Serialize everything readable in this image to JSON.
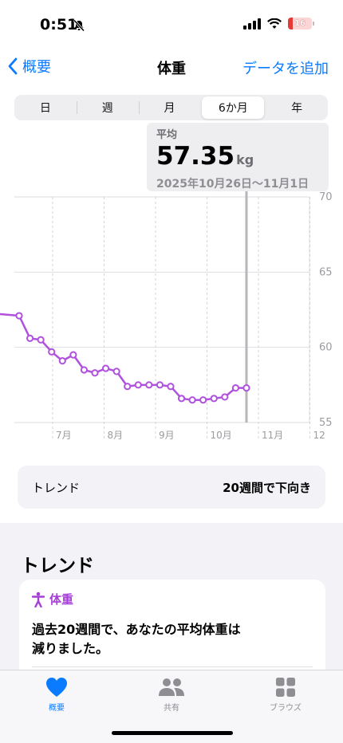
{
  "status": {
    "time": "0:51",
    "battery": "16"
  },
  "nav": {
    "back_label": "概要",
    "title": "体重",
    "action_label": "データを追加"
  },
  "segments": [
    {
      "label": "日"
    },
    {
      "label": "週"
    },
    {
      "label": "月"
    },
    {
      "label": "6か月",
      "selected": true
    },
    {
      "label": "年"
    }
  ],
  "summary": {
    "label": "平均",
    "value": "57.35",
    "unit": "kg",
    "range": "2025年10月26日～11月1日"
  },
  "chart_data": {
    "type": "line",
    "x_tick_labels": [
      "7月",
      "8月",
      "9月",
      "10月",
      "11月",
      "12"
    ],
    "y_tick_labels": [
      "70",
      "65",
      "60",
      "55"
    ],
    "ylim": [
      55,
      70
    ],
    "grid": true,
    "series": [
      {
        "values": [
          62.1,
          60.6,
          60.5,
          59.7,
          59.1,
          59.5,
          58.5,
          58.3,
          58.6,
          58.4,
          57.4,
          57.5,
          57.5,
          57.5,
          57.4,
          56.6,
          56.5,
          56.5,
          56.6,
          56.7,
          57.3,
          57.3
        ]
      }
    ],
    "highlight_index": 21,
    "line_color": "#af52de"
  },
  "trend": {
    "label": "トレンド",
    "value": "20週間で下向き"
  },
  "section": {
    "title": "トレンド"
  },
  "card": {
    "category": "体重",
    "text_line1": "過去20週間で、あなたの平均体重は",
    "text_line2": "減りました。"
  },
  "tabs": [
    {
      "label": "概要",
      "icon": "heart-icon",
      "active": true
    },
    {
      "label": "共有",
      "icon": "people-icon"
    },
    {
      "label": "ブラウズ",
      "icon": "grid-icon"
    }
  ],
  "colors": {
    "accent": "#0a7aff",
    "series": "#af52de"
  }
}
